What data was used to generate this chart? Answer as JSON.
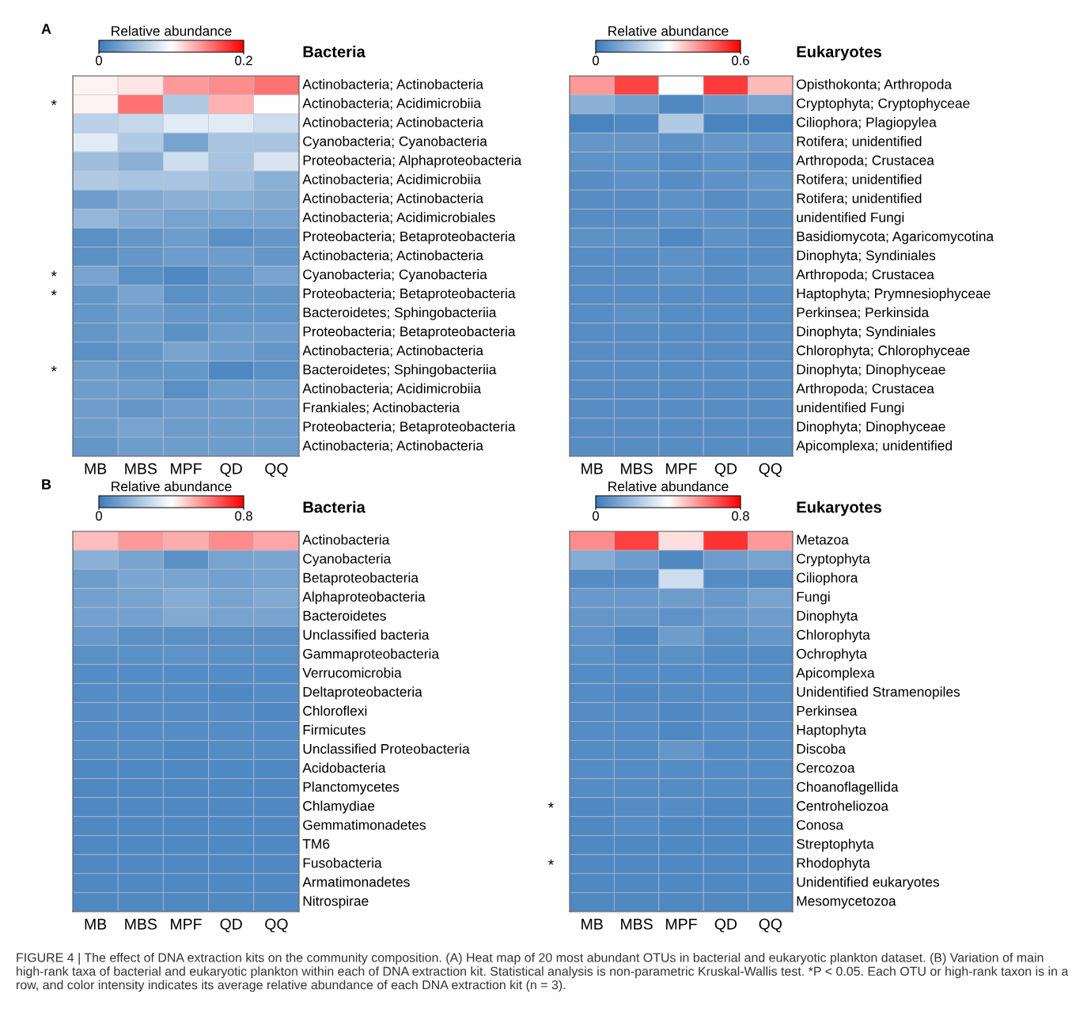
{
  "chart_data": [
    {
      "type": "heatmap",
      "title": "Bacteria",
      "clabel": "Relative abundance",
      "clim": [
        0,
        0.2
      ],
      "cticks": [
        0,
        0.2
      ],
      "annotations": [
        "A"
      ],
      "categories": [
        "MB",
        "MBS",
        "MPF",
        "QD",
        "QQ"
      ],
      "y2_categories": [
        null,
        "*",
        null,
        null,
        null,
        null,
        null,
        null,
        null,
        null,
        "*",
        "*",
        null,
        null,
        null,
        "*",
        null,
        null,
        null,
        null
      ],
      "y_categories": [
        "Actinobacteria; Actinobacteria",
        "Actinobacteria; Acidimicrobiia",
        "Actinobacteria; Actinobacteria",
        "Cyanobacteria; Cyanobacteria",
        "Proteobacteria; Alphaproteobacteria",
        "Actinobacteria; Acidimicrobiia",
        "Actinobacteria; Actinobacteria",
        "Actinobacteria; Acidimicrobiales",
        "Proteobacteria; Betaproteobacteria",
        "Actinobacteria; Actinobacteria",
        "Cyanobacteria; Cyanobacteria",
        "Proteobacteria; Betaproteobacteria",
        "Bacteroidetes; Sphingobacteriia",
        "Proteobacteria; Betaproteobacteria",
        "Actinobacteria; Actinobacteria",
        "Bacteroidetes; Sphingobacteriia",
        "Actinobacteria; Acidimicrobiia",
        "Frankiales; Actinobacteria",
        "Proteobacteria; Betaproteobacteria",
        "Actinobacteria; Actinobacteria"
      ],
      "cells": [
        [
          0.105,
          0.11,
          0.14,
          0.145,
          0.155
        ],
        [
          0.105,
          0.155,
          0.06,
          0.13,
          0.1
        ],
        [
          0.065,
          0.07,
          0.085,
          0.085,
          0.075
        ],
        [
          0.085,
          0.06,
          0.03,
          0.055,
          0.055
        ],
        [
          0.05,
          0.04,
          0.075,
          0.055,
          0.08
        ],
        [
          0.06,
          0.055,
          0.055,
          0.05,
          0.04
        ],
        [
          0.025,
          0.035,
          0.04,
          0.04,
          0.035
        ],
        [
          0.045,
          0.035,
          0.03,
          0.03,
          0.03
        ],
        [
          0.015,
          0.02,
          0.025,
          0.015,
          0.02
        ],
        [
          0.015,
          0.02,
          0.025,
          0.025,
          0.02
        ],
        [
          0.03,
          0.015,
          0.01,
          0.02,
          0.03
        ],
        [
          0.02,
          0.03,
          0.015,
          0.02,
          0.02
        ],
        [
          0.02,
          0.025,
          0.02,
          0.02,
          0.02
        ],
        [
          0.02,
          0.025,
          0.015,
          0.025,
          0.025
        ],
        [
          0.015,
          0.02,
          0.03,
          0.025,
          0.02
        ],
        [
          0.025,
          0.02,
          0.02,
          0.01,
          0.015
        ],
        [
          0.025,
          0.025,
          0.015,
          0.025,
          0.025
        ],
        [
          0.025,
          0.02,
          0.025,
          0.025,
          0.025
        ],
        [
          0.025,
          0.03,
          0.025,
          0.025,
          0.025
        ],
        [
          0.02,
          0.025,
          0.025,
          0.025,
          0.025
        ]
      ]
    },
    {
      "type": "heatmap",
      "title": "Eukaryotes",
      "clabel": "Relative abundance",
      "clim": [
        0,
        0.6
      ],
      "cticks": [
        0,
        0.6
      ],
      "categories": [
        "MB",
        "MBS",
        "MPF",
        "QD",
        "QQ"
      ],
      "y_categories": [
        "Opisthokonta; Arthropoda",
        "Cryptophyta; Cryptophyceae",
        "Ciliophora; Plagiopylea",
        "Rotifera; unidentified",
        "Arthropoda; Crustacea",
        "Rotifera; unidentified",
        "Rotifera; unidentified",
        "unidentified Fungi",
        "Basidiomycota; Agaricomycotina",
        "Dinophyta; Syndiniales",
        "Arthropoda; Crustacea",
        "Haptophyta; Prymnesiophyceae",
        "Perkinsea; Perkinsida",
        "Dinophyta; Syndiniales",
        "Chlorophyta; Chlorophyceae",
        "Dinophyta; Dinophyceae",
        "Arthropoda; Crustacea",
        "unidentified Fungi",
        "Dinophyta; Dinophyceae",
        "Apicomplexa; unidentified"
      ],
      "cells": [
        [
          0.42,
          0.52,
          0.3,
          0.53,
          0.38
        ],
        [
          0.12,
          0.08,
          0.03,
          0.07,
          0.09
        ],
        [
          0.02,
          0.03,
          0.18,
          0.02,
          0.02
        ],
        [
          0.06,
          0.06,
          0.05,
          0.06,
          0.06
        ],
        [
          0.05,
          0.05,
          0.04,
          0.05,
          0.04
        ],
        [
          0.04,
          0.05,
          0.04,
          0.05,
          0.06
        ],
        [
          0.04,
          0.04,
          0.05,
          0.04,
          0.05
        ],
        [
          0.04,
          0.04,
          0.05,
          0.05,
          0.04
        ],
        [
          0.05,
          0.05,
          0.03,
          0.05,
          0.04
        ],
        [
          0.04,
          0.04,
          0.05,
          0.04,
          0.04
        ],
        [
          0.04,
          0.04,
          0.05,
          0.04,
          0.05
        ],
        [
          0.04,
          0.04,
          0.04,
          0.04,
          0.04
        ],
        [
          0.04,
          0.05,
          0.04,
          0.04,
          0.04
        ],
        [
          0.04,
          0.04,
          0.04,
          0.04,
          0.04
        ],
        [
          0.04,
          0.04,
          0.04,
          0.04,
          0.04
        ],
        [
          0.04,
          0.04,
          0.04,
          0.04,
          0.04
        ],
        [
          0.04,
          0.04,
          0.04,
          0.04,
          0.04
        ],
        [
          0.04,
          0.04,
          0.04,
          0.04,
          0.04
        ],
        [
          0.04,
          0.04,
          0.04,
          0.04,
          0.04
        ],
        [
          0.04,
          0.04,
          0.04,
          0.04,
          0.04
        ]
      ]
    },
    {
      "type": "heatmap",
      "title": "Bacteria",
      "clabel": "Relative abundance",
      "clim": [
        0,
        0.8
      ],
      "cticks": [
        0,
        0.8
      ],
      "annotations": [
        "B"
      ],
      "categories": [
        "MB",
        "MBS",
        "MPF",
        "QD",
        "QQ"
      ],
      "y_categories": [
        "Actinobacteria",
        "Cyanobacteria",
        "Betaproteobacteria",
        "Alphaproteobacteria",
        "Bacteroidetes",
        "Unclassified bacteria",
        "Gammaproteobacteria",
        "Verrucomicrobia",
        "Deltaproteobacteria",
        "Chloroflexi",
        "Firmicutes",
        "Unclassified Proteobacteria",
        "Acidobacteria",
        "Planctomycetes",
        "Chlamydiae",
        "Gemmatimonadetes",
        "TM6",
        "Fusobacteria",
        "Armatimonadetes",
        "Nitrospirae"
      ],
      "cells": [
        [
          0.5,
          0.56,
          0.53,
          0.58,
          0.54
        ],
        [
          0.16,
          0.12,
          0.06,
          0.12,
          0.13
        ],
        [
          0.1,
          0.13,
          0.12,
          0.11,
          0.12
        ],
        [
          0.11,
          0.12,
          0.15,
          0.12,
          0.14
        ],
        [
          0.11,
          0.11,
          0.14,
          0.12,
          0.12
        ],
        [
          0.09,
          0.06,
          0.06,
          0.06,
          0.06
        ],
        [
          0.06,
          0.06,
          0.07,
          0.06,
          0.06
        ],
        [
          0.05,
          0.05,
          0.05,
          0.05,
          0.05
        ],
        [
          0.05,
          0.05,
          0.05,
          0.04,
          0.05
        ],
        [
          0.05,
          0.05,
          0.05,
          0.05,
          0.04
        ],
        [
          0.05,
          0.05,
          0.05,
          0.05,
          0.05
        ],
        [
          0.05,
          0.05,
          0.04,
          0.05,
          0.05
        ],
        [
          0.04,
          0.04,
          0.04,
          0.04,
          0.04
        ],
        [
          0.04,
          0.04,
          0.04,
          0.04,
          0.04
        ],
        [
          0.04,
          0.04,
          0.04,
          0.04,
          0.04
        ],
        [
          0.04,
          0.04,
          0.04,
          0.04,
          0.04
        ],
        [
          0.04,
          0.04,
          0.04,
          0.04,
          0.04
        ],
        [
          0.04,
          0.04,
          0.04,
          0.04,
          0.04
        ],
        [
          0.04,
          0.04,
          0.04,
          0.04,
          0.04
        ],
        [
          0.04,
          0.04,
          0.04,
          0.04,
          0.04
        ]
      ]
    },
    {
      "type": "heatmap",
      "title": "Eukaryotes",
      "clabel": "Relative abundance",
      "clim": [
        0,
        0.8
      ],
      "cticks": [
        0,
        0.8
      ],
      "annotations": [
        "FIGURE 4 | The effect of DNA extraction kits on the community composition. (A) Heat map of 20 most abundant OTUs in bacterial and eukaryotic plankton dataset. (B) Variation of main high-rank taxa of bacterial and eukaryotic plankton within each of DNA extraction kit. Statistical analysis is non-parametric Kruskal-Wallis test. *P < 0.05. Each OTU or high-rank taxon is in a row, and color intensity indicates its average relative abundance of each DNA extraction kit (n = 3)."
      ],
      "categories": [
        "MB",
        "MBS",
        "MPF",
        "QD",
        "QQ"
      ],
      "y2_categories": [
        null,
        null,
        null,
        null,
        null,
        null,
        null,
        null,
        null,
        null,
        null,
        null,
        null,
        null,
        "*",
        null,
        null,
        "*",
        null,
        null
      ],
      "y_categories": [
        "Metazoa",
        "Cryptophyta",
        "Ciliophora",
        "Fungi",
        "Dinophyta",
        "Chlorophyta",
        "Ochrophyta",
        "Apicomplexa",
        "Unidentified Stramenopiles",
        "Perkinsea",
        "Haptophyta",
        "Discoba",
        "Cercozoa",
        "Choanoflagellida",
        "Centroheliozoa",
        "Conosa",
        "Streptophyta",
        "Rhodophyta",
        "Unidentified eukaryotes",
        "Mesomycetozoa"
      ],
      "cells": [
        [
          0.58,
          0.7,
          0.45,
          0.72,
          0.56
        ],
        [
          0.15,
          0.1,
          0.04,
          0.1,
          0.12
        ],
        [
          0.05,
          0.05,
          0.3,
          0.05,
          0.05
        ],
        [
          0.09,
          0.09,
          0.1,
          0.09,
          0.12
        ],
        [
          0.08,
          0.08,
          0.07,
          0.09,
          0.1
        ],
        [
          0.07,
          0.04,
          0.1,
          0.06,
          0.08
        ],
        [
          0.06,
          0.05,
          0.06,
          0.05,
          0.05
        ],
        [
          0.05,
          0.05,
          0.05,
          0.05,
          0.05
        ],
        [
          0.05,
          0.04,
          0.05,
          0.05,
          0.05
        ],
        [
          0.05,
          0.05,
          0.04,
          0.05,
          0.05
        ],
        [
          0.05,
          0.05,
          0.04,
          0.05,
          0.05
        ],
        [
          0.05,
          0.05,
          0.08,
          0.05,
          0.05
        ],
        [
          0.05,
          0.05,
          0.05,
          0.05,
          0.05
        ],
        [
          0.05,
          0.05,
          0.05,
          0.05,
          0.05
        ],
        [
          0.04,
          0.05,
          0.05,
          0.04,
          0.04
        ],
        [
          0.04,
          0.05,
          0.04,
          0.04,
          0.04
        ],
        [
          0.04,
          0.04,
          0.04,
          0.04,
          0.04
        ],
        [
          0.04,
          0.04,
          0.04,
          0.04,
          0.04
        ],
        [
          0.04,
          0.04,
          0.04,
          0.04,
          0.04
        ],
        [
          0.04,
          0.04,
          0.04,
          0.04,
          0.04
        ]
      ]
    }
  ]
}
